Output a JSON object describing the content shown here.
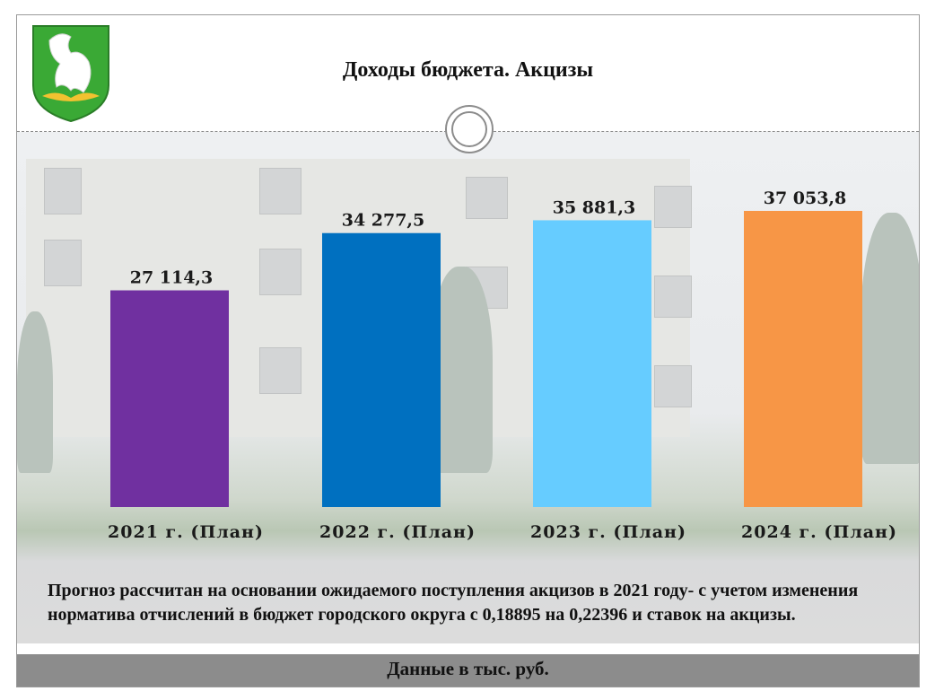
{
  "slide": {
    "title": "Доходы бюджета. Акцизы",
    "note": "Прогноз рассчитан на основании ожидаемого поступления акцизов в 2021 году- с учетом изменения норматива отчислений в бюджет городского округа с 0,18895 на 0,22396 и ставок на акцизы.",
    "footer": "Данные в тыс. руб."
  },
  "chart_data": {
    "type": "bar",
    "title": "Доходы бюджета. Акцизы",
    "categories": [
      "2021 г. (План)",
      "2022 г. (План)",
      "2023 г. (План)",
      "2024 г. (План)"
    ],
    "values": [
      27114.3,
      34277.5,
      35881.3,
      37053.8
    ],
    "value_labels": [
      "27 114,3",
      "34 277,5",
      "35 881,3",
      "37 053,8"
    ],
    "colors": [
      "#7030a0",
      "#0070c0",
      "#66ccff",
      "#f79646"
    ],
    "grid": false,
    "legend": "none"
  }
}
